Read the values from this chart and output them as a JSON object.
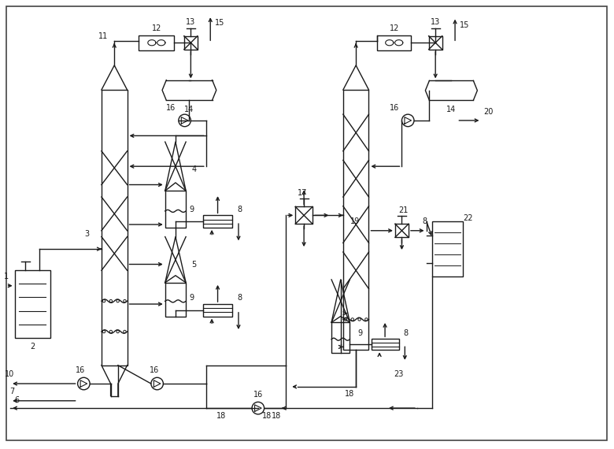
{
  "bg_color": "#ffffff",
  "line_color": "#1a1a1a",
  "label_color": "#1a1a1a"
}
